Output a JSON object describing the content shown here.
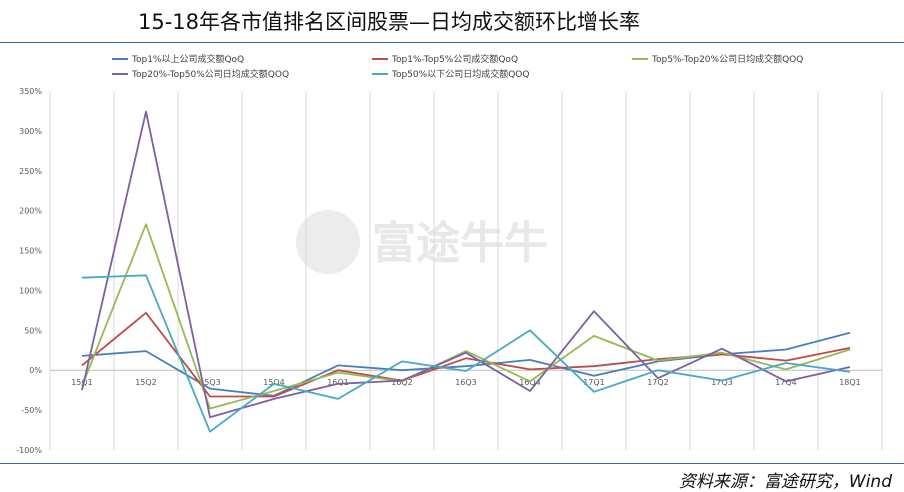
{
  "page": {
    "title": "15-18年各市值排名区间股票—日均成交额环比增长率",
    "source": "资料来源：富途研究，Wind",
    "watermark": "富途牛牛"
  },
  "chart_data": {
    "type": "line",
    "title": "15-18年各市值排名区间股票—日均成交额环比增长率",
    "xlabel": "",
    "ylabel": "",
    "categories": [
      "15Q1",
      "15Q2",
      "15Q3",
      "15Q4",
      "16Q1",
      "16Q2",
      "16Q3",
      "16Q4",
      "17Q1",
      "17Q2",
      "17Q3",
      "17Q4",
      "18Q1"
    ],
    "ylim": [
      -100,
      350
    ],
    "yticks": [
      -100,
      -50,
      0,
      50,
      100,
      150,
      200,
      250,
      300,
      350
    ],
    "ytick_labels": [
      "-100%",
      "-50%",
      "0%",
      "50%",
      "100%",
      "150%",
      "200%",
      "250%",
      "300%",
      "350%"
    ],
    "grid": "vertical",
    "legend_position": "top",
    "series": [
      {
        "name": "Top1%以上公司成交额QoQ",
        "color": "#4a7ebb",
        "values": [
          18,
          24,
          -23,
          -32,
          6,
          0,
          5,
          13,
          -7,
          11,
          20,
          26,
          47
        ]
      },
      {
        "name": "Top1%-Top5%公司成交额QoQ",
        "color": "#be4b48",
        "values": [
          6,
          72,
          -33,
          -33,
          0,
          -13,
          15,
          1,
          5,
          14,
          20,
          12,
          28
        ]
      },
      {
        "name": "Top5%-Top20%公司日均成交额QOQ",
        "color": "#98b954",
        "values": [
          -20,
          183,
          -48,
          -26,
          -3,
          -14,
          24,
          -14,
          43,
          12,
          22,
          1,
          26
        ]
      },
      {
        "name": "Top20%-Top50%公司日均成交额QOQ",
        "color": "#7d60a0",
        "values": [
          -25,
          324,
          -59,
          -36,
          -17,
          -13,
          22,
          -26,
          74,
          -10,
          27,
          -14,
          4
        ]
      },
      {
        "name": "Top50%以下公司日均成交额QOQ",
        "color": "#46aac5",
        "values": [
          116,
          119,
          -77,
          -17,
          -36,
          11,
          -1,
          50,
          -27,
          0,
          -13,
          9,
          -2
        ]
      }
    ]
  }
}
